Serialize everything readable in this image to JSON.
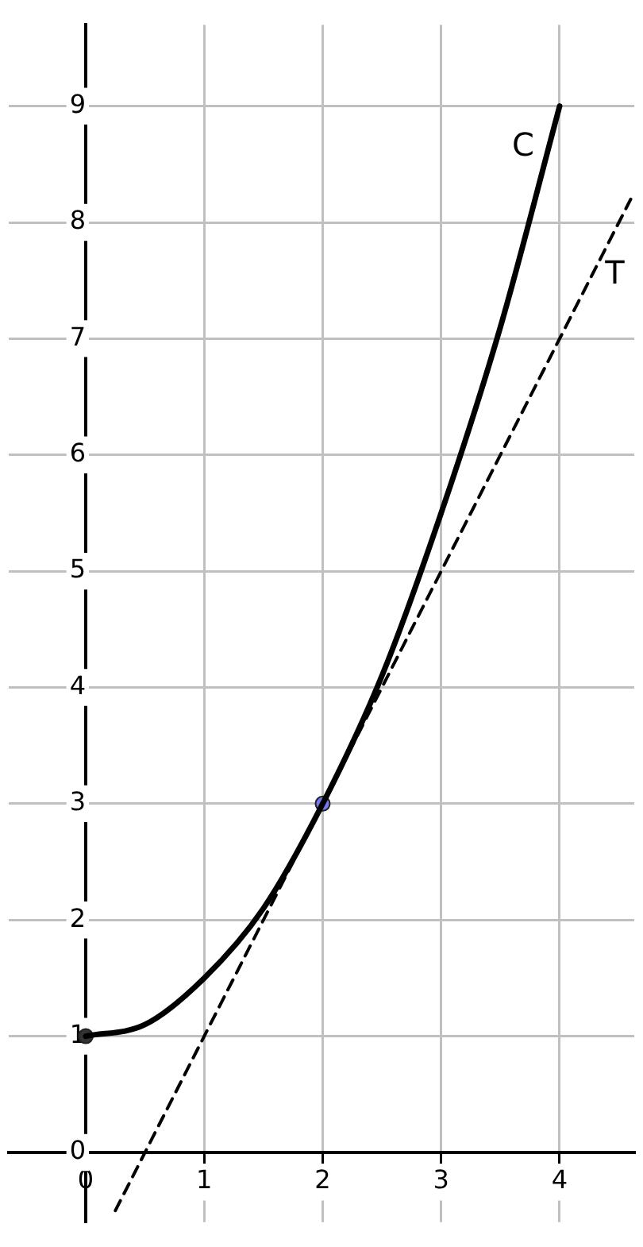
{
  "chart_data": {
    "type": "line",
    "xlim": [
      -0.65,
      4.63
    ],
    "ylim": [
      -0.6,
      9.7
    ],
    "xticks": [
      0,
      1,
      2,
      3,
      4
    ],
    "yticks": [
      0,
      1,
      2,
      3,
      4,
      5,
      6,
      7,
      8,
      9
    ],
    "grid": true,
    "legend": false,
    "series": [
      {
        "name": "C",
        "color": "#000000",
        "x": [
          0,
          0.5,
          1,
          1.5,
          2,
          2.5,
          3,
          3.5,
          4
        ],
        "values": [
          1,
          1.1,
          1.5,
          2.1,
          3,
          4.1,
          5.5,
          7.1,
          9
        ],
        "line_style": "solid",
        "marker": "none"
      },
      {
        "name": "T",
        "color": "#000000",
        "x": [
          0.25,
          4.6
        ],
        "values": [
          -0.5,
          8.2
        ],
        "line_style": "dashed",
        "marker": "none"
      },
      {
        "type": "scatter",
        "color": "#333333",
        "x": [
          0
        ],
        "values": [
          1
        ],
        "marker": "circle"
      },
      {
        "type": "scatter",
        "color": "#7777ee",
        "x": [
          2
        ],
        "values": [
          3
        ],
        "marker": "circle"
      }
    ]
  }
}
